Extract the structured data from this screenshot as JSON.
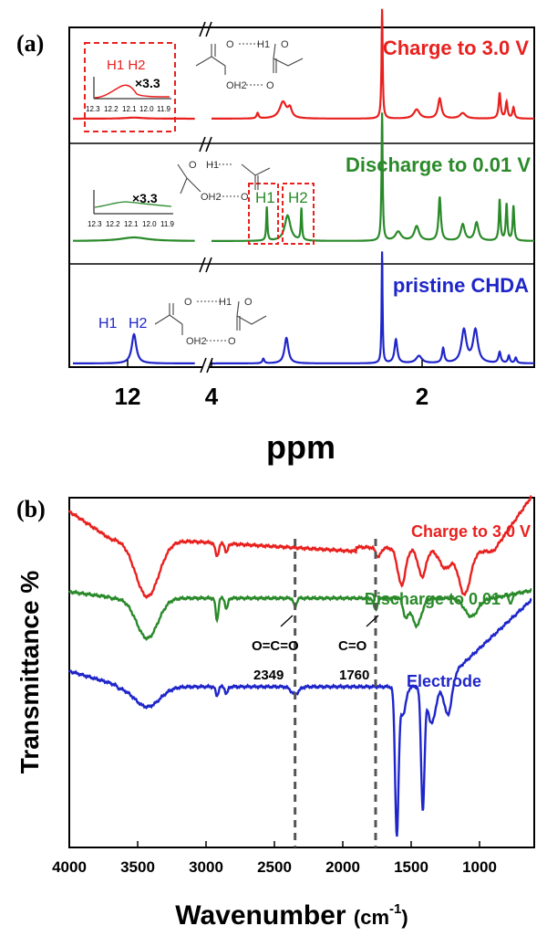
{
  "chart_data": [
    {
      "type": "line",
      "panel_label": "(a)",
      "title": "",
      "xlabel": "ppm",
      "ylabel": "",
      "x_axis_break": true,
      "xticks": [
        "12",
        "4",
        "2"
      ],
      "series": [
        {
          "name": "Charge to 3.0 V",
          "color": "#e8211f",
          "key": "charge",
          "peaks_ppm": [
            12.15,
            3.35,
            3.2,
            2.52,
            2.2,
            2.0,
            1.78,
            1.48,
            1.4
          ],
          "inset_label": "H1 H2",
          "inset_scale": "×3.3"
        },
        {
          "name": "Discharge to 0.01 V",
          "color": "#2a8a2a",
          "key": "discharge",
          "peaks_ppm": [
            12.15,
            3.35,
            3.2,
            2.52,
            2.2,
            2.0,
            1.78,
            1.48,
            1.4
          ],
          "peak_labels": [
            "H1",
            "H2"
          ],
          "inset_scale": "×3.3"
        },
        {
          "name": "pristine CHDA",
          "color": "#1f26c9",
          "key": "pristine",
          "peaks_ppm": [
            12.15,
            3.2,
            2.52,
            2.2,
            2.0,
            1.78,
            1.48,
            1.4
          ],
          "peak_labels": [
            "H1",
            "H2"
          ]
        }
      ],
      "inset_ticks": [
        "12.3",
        "12.2",
        "12.1",
        "12.0",
        "11.9"
      ],
      "molecule_labels": [
        "O",
        "H1",
        "O",
        "OH2",
        "O",
        "O",
        "H1",
        "OH2",
        "O"
      ]
    },
    {
      "type": "line",
      "panel_label": "(b)",
      "title": "",
      "xlabel": "Wavenumber (cm-1)",
      "xlabel_main": "Wavenumber",
      "xlabel_unit": "(cm",
      "xlabel_exp": "-1",
      "xlabel_close": ")",
      "ylabel": "Transmittance %",
      "xlim": [
        4000,
        600
      ],
      "xticks": [
        4000,
        3500,
        3000,
        2500,
        2000,
        1500,
        1000
      ],
      "series": [
        {
          "name": "Charge to 3.0 V",
          "color": "#e8211f",
          "key": "charge"
        },
        {
          "name": "Discharge to 0.01 V",
          "color": "#2a8a2a",
          "key": "discharge"
        },
        {
          "name": "Electrode",
          "color": "#1f26c9",
          "key": "electrode"
        }
      ],
      "reference_lines": [
        {
          "x": 2349,
          "label": "O=C=O",
          "value_label": "2349"
        },
        {
          "x": 1760,
          "label": "C=O",
          "value_label": "1760"
        }
      ]
    }
  ]
}
